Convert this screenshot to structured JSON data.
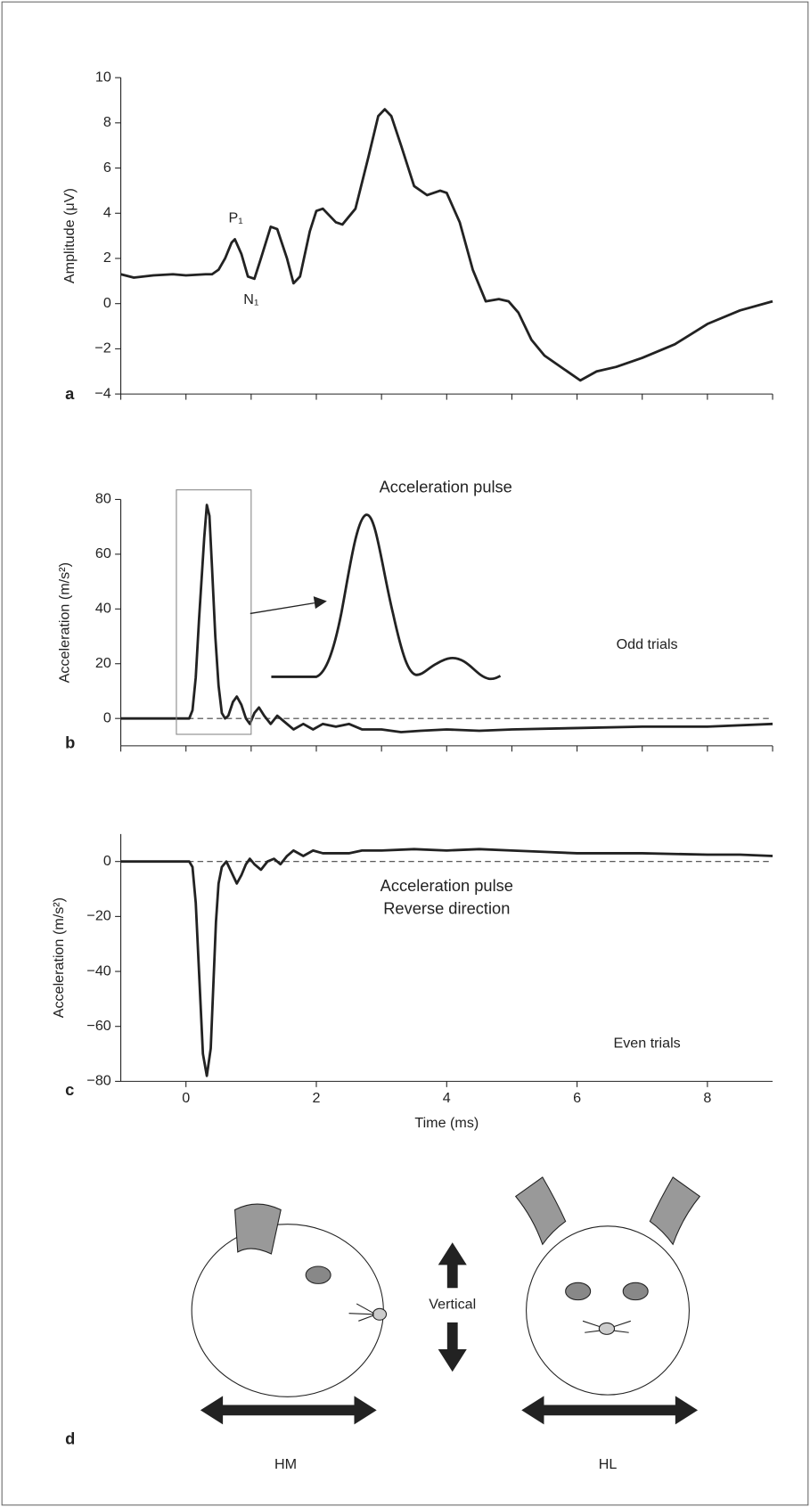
{
  "chart_data": [
    {
      "type": "line",
      "panel_label": "a",
      "ylabel": "Amplitude (μV)",
      "color": "#222",
      "annotations": [
        "P₁",
        "N₁"
      ],
      "x": [
        -1,
        -0.8,
        -0.5,
        -0.2,
        0,
        0.3,
        0.4,
        0.5,
        0.6,
        0.7,
        0.75,
        0.85,
        0.95,
        1.05,
        1.15,
        1.3,
        1.4,
        1.55,
        1.65,
        1.75,
        1.9,
        2.0,
        2.1,
        2.3,
        2.4,
        2.6,
        2.8,
        2.95,
        3.05,
        3.15,
        3.3,
        3.5,
        3.7,
        3.9,
        4.0,
        4.2,
        4.4,
        4.6,
        4.8,
        4.95,
        5.1,
        5.3,
        5.5,
        5.8,
        6.05,
        6.3,
        6.6,
        7.0,
        7.5,
        8.0,
        8.5,
        9.0
      ],
      "values": [
        1.3,
        1.15,
        1.25,
        1.3,
        1.25,
        1.3,
        1.3,
        1.5,
        2.0,
        2.7,
        2.85,
        2.2,
        1.2,
        1.1,
        2.0,
        3.4,
        3.3,
        2.0,
        0.9,
        1.2,
        3.2,
        4.1,
        4.2,
        3.6,
        3.5,
        4.2,
        6.5,
        8.3,
        8.6,
        8.3,
        7.0,
        5.2,
        4.8,
        5.0,
        4.9,
        3.6,
        1.5,
        0.1,
        0.2,
        0.1,
        -0.4,
        -1.6,
        -2.3,
        -2.9,
        -3.4,
        -3.0,
        -2.8,
        -2.4,
        -1.8,
        -0.9,
        -0.3,
        0.1
      ],
      "xlim": [
        -1,
        9
      ],
      "ylim": [
        -4,
        10
      ],
      "xticks": [
        -1,
        0,
        1,
        2,
        3,
        4,
        5,
        6,
        7,
        8,
        9
      ],
      "show_xtick_labels": false,
      "yticks": [
        {
          "value": -4,
          "label": "−4"
        },
        {
          "value": -2,
          "label": "−2"
        },
        0,
        2,
        4,
        6,
        8,
        10
      ],
      "zero_line": false
    },
    {
      "type": "line",
      "panel_label": "b",
      "ylabel": "Acceleration (m/s²)",
      "color": "#222",
      "annotations": [
        "Acceleration pulse",
        "Odd trials"
      ],
      "x": [
        -1,
        0.05,
        0.1,
        0.15,
        0.2,
        0.28,
        0.32,
        0.36,
        0.4,
        0.45,
        0.5,
        0.55,
        0.6,
        0.65,
        0.72,
        0.78,
        0.85,
        0.92,
        0.98,
        1.05,
        1.12,
        1.2,
        1.3,
        1.4,
        1.5,
        1.65,
        1.8,
        1.95,
        2.1,
        2.3,
        2.5,
        2.7,
        3.0,
        3.3,
        3.6,
        4.0,
        4.5,
        5.0,
        6.0,
        7.0,
        8.0,
        9.0
      ],
      "values": [
        0,
        0,
        3,
        15,
        36,
        66,
        78,
        74,
        55,
        30,
        12,
        2,
        0,
        1,
        6,
        8,
        5,
        0,
        -2,
        2,
        4,
        1,
        -2,
        1,
        -1,
        -4,
        -2,
        -4,
        -2,
        -3,
        -2,
        -4,
        -4,
        -5,
        -4.5,
        -4,
        -4.5,
        -4,
        -3.5,
        -3,
        -3,
        -2
      ],
      "xlim": [
        -1,
        9
      ],
      "ylim": [
        -10,
        80
      ],
      "xticks": [
        -1,
        0,
        1,
        2,
        3,
        4,
        5,
        6,
        7,
        8,
        9
      ],
      "show_xtick_labels": false,
      "yticks": [
        0,
        20,
        40,
        60,
        80
      ],
      "zero_line": true
    },
    {
      "type": "line",
      "panel_label": "c",
      "ylabel": "Acceleration (m/s²)",
      "xlabel": "Time (ms)",
      "color": "#222",
      "annotations": [
        "Acceleration pulse",
        "Reverse direction",
        "Even trials"
      ],
      "x": [
        -1,
        0.05,
        0.1,
        0.15,
        0.2,
        0.26,
        0.32,
        0.38,
        0.42,
        0.46,
        0.5,
        0.55,
        0.62,
        0.7,
        0.78,
        0.85,
        0.92,
        0.98,
        1.05,
        1.15,
        1.25,
        1.35,
        1.45,
        1.55,
        1.65,
        1.8,
        1.95,
        2.1,
        2.3,
        2.5,
        2.7,
        3.0,
        3.5,
        4.0,
        4.5,
        5.0,
        5.5,
        6.0,
        7.0,
        8.0,
        8.5,
        9.0
      ],
      "values": [
        0,
        0,
        -2,
        -15,
        -40,
        -70,
        -78,
        -68,
        -45,
        -22,
        -8,
        -2,
        0,
        -4,
        -8,
        -5,
        -1,
        1,
        -1,
        -3,
        0,
        1,
        -1,
        2,
        4,
        2,
        4,
        3,
        3,
        3,
        4,
        4,
        4.5,
        4,
        4.5,
        4,
        3.5,
        3,
        3,
        2.5,
        2.5,
        2
      ],
      "xlim": [
        -1,
        9
      ],
      "ylim": [
        -80,
        10
      ],
      "xticks": [
        0,
        2,
        4,
        6,
        8
      ],
      "show_xtick_labels": true,
      "yticks": [
        {
          "value": -80,
          "label": "−80"
        },
        {
          "value": -60,
          "label": "−60"
        },
        {
          "value": -40,
          "label": "−40"
        },
        {
          "value": -20,
          "label": "−20"
        },
        0
      ],
      "zero_line": true
    }
  ],
  "diagram": {
    "panel_label": "d",
    "vertical": "Vertical",
    "left": "HM",
    "right": "HL"
  }
}
